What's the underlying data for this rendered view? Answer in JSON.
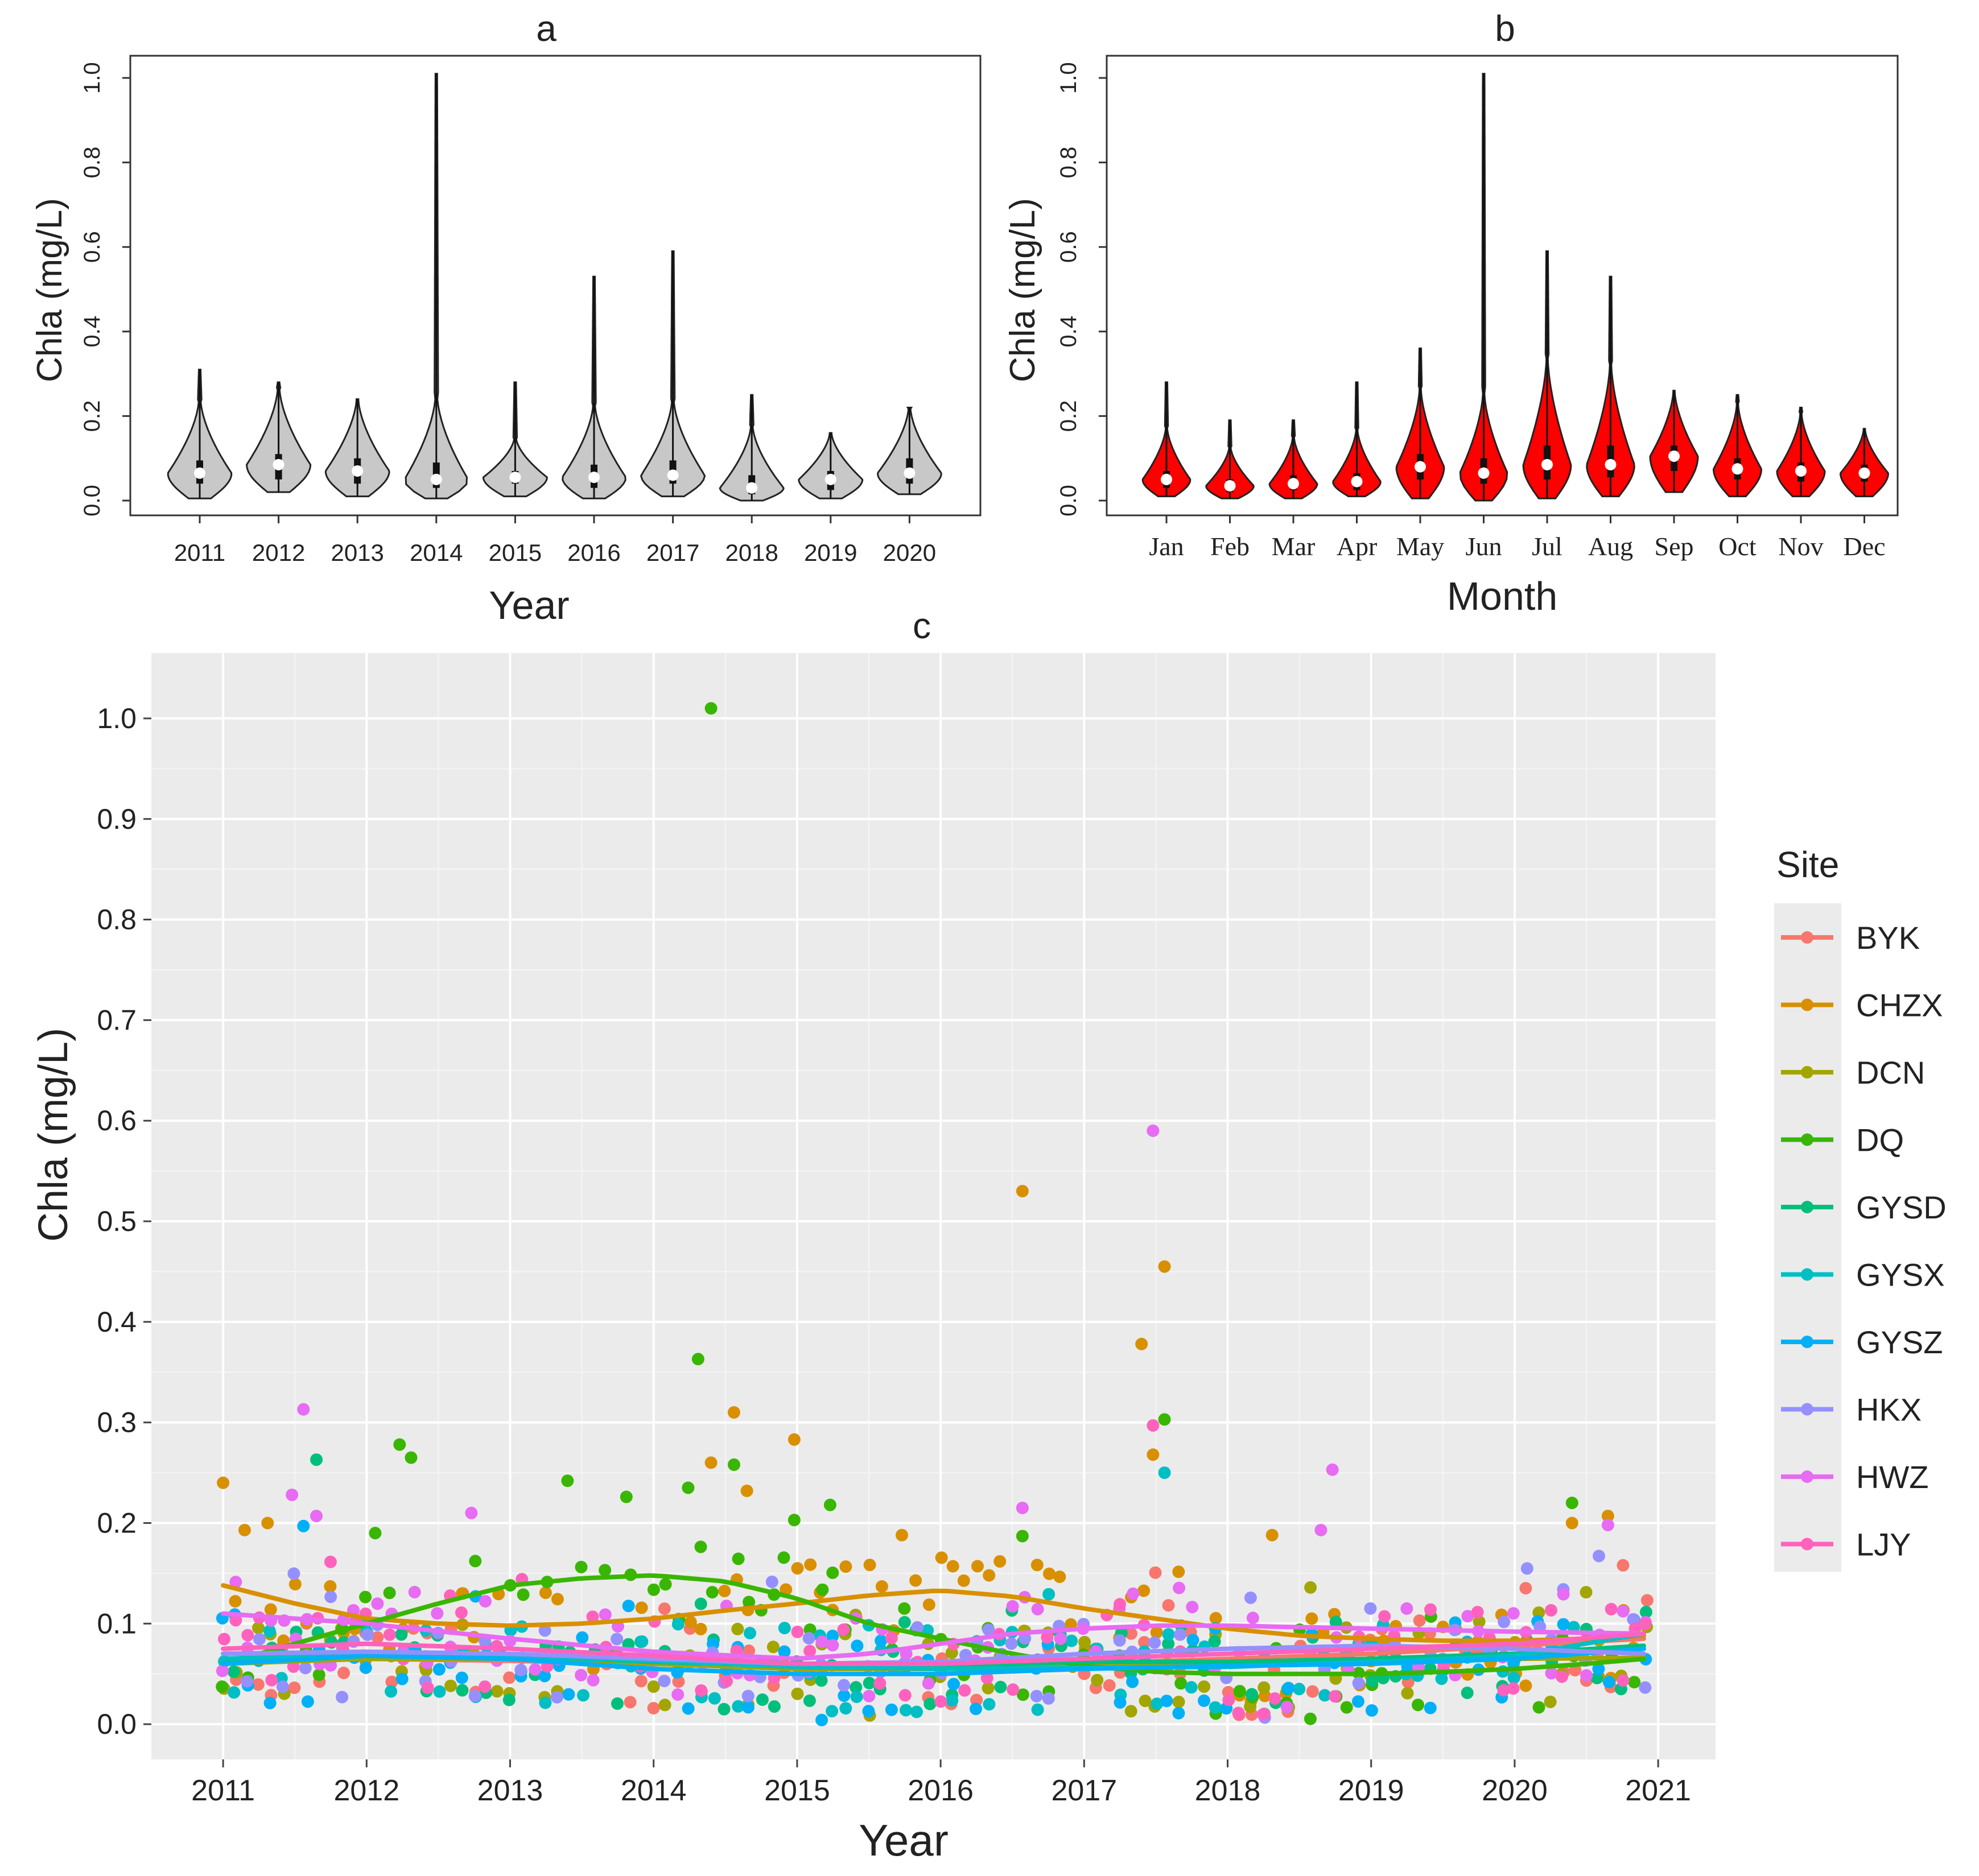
{
  "chart_data": [
    {
      "panel": "a",
      "type": "violin",
      "title": "a",
      "xlabel": "Year",
      "ylabel": "Chla (mg/L)",
      "ylim": [
        0.0,
        1.0
      ],
      "yticks": [
        "0.0",
        "0.2",
        "0.4",
        "0.6",
        "0.8",
        "1.0"
      ],
      "fill_color": "#c8c8c8",
      "categories": [
        "2011",
        "2012",
        "2013",
        "2014",
        "2015",
        "2016",
        "2017",
        "2018",
        "2019",
        "2020"
      ],
      "min": [
        0.005,
        0.02,
        0.01,
        0.005,
        0.01,
        0.005,
        0.01,
        0.0,
        0.005,
        0.015
      ],
      "q1": [
        0.04,
        0.05,
        0.04,
        0.03,
        0.04,
        0.03,
        0.04,
        0.015,
        0.025,
        0.04
      ],
      "median": [
        0.065,
        0.085,
        0.07,
        0.05,
        0.055,
        0.055,
        0.06,
        0.03,
        0.05,
        0.065
      ],
      "q3": [
        0.095,
        0.11,
        0.1,
        0.09,
        0.07,
        0.085,
        0.095,
        0.06,
        0.07,
        0.1
      ],
      "max": [
        0.31,
        0.28,
        0.24,
        1.01,
        0.28,
        0.53,
        0.59,
        0.25,
        0.16,
        0.22
      ]
    },
    {
      "panel": "b",
      "type": "violin",
      "title": "b",
      "xlabel": "Month",
      "ylabel": "Chla (mg/L)",
      "ylim": [
        0.0,
        1.0
      ],
      "yticks": [
        "0.0",
        "0.2",
        "0.4",
        "0.6",
        "0.8",
        "1.0"
      ],
      "fill_color": "#ff0000",
      "categories": [
        "Jan",
        "Feb",
        "Mar",
        "Apr",
        "May",
        "Jun",
        "Jul",
        "Aug",
        "Sep",
        "Oct",
        "Nov",
        "Dec"
      ],
      "min": [
        0.01,
        0.005,
        0.005,
        0.01,
        0.005,
        0.0,
        0.005,
        0.01,
        0.02,
        0.01,
        0.01,
        0.01
      ],
      "q1": [
        0.03,
        0.02,
        0.025,
        0.025,
        0.05,
        0.04,
        0.05,
        0.055,
        0.07,
        0.05,
        0.045,
        0.045
      ],
      "median": [
        0.05,
        0.035,
        0.04,
        0.045,
        0.08,
        0.065,
        0.085,
        0.085,
        0.105,
        0.075,
        0.07,
        0.065
      ],
      "q3": [
        0.07,
        0.05,
        0.06,
        0.065,
        0.11,
        0.1,
        0.13,
        0.13,
        0.13,
        0.1,
        0.09,
        0.085
      ],
      "max": [
        0.28,
        0.19,
        0.19,
        0.28,
        0.36,
        1.01,
        0.59,
        0.53,
        0.26,
        0.25,
        0.22,
        0.17
      ]
    },
    {
      "panel": "c",
      "type": "scatter",
      "title": "c",
      "xlabel": "Year",
      "ylabel": "Chla (mg/L)",
      "xlim": [
        2010.5,
        2021.4
      ],
      "ylim": [
        -0.035,
        1.065
      ],
      "xticks": [
        "2011",
        "2012",
        "2013",
        "2014",
        "2015",
        "2016",
        "2017",
        "2018",
        "2019",
        "2020",
        "2021"
      ],
      "yticks": [
        "0.0",
        "0.1",
        "0.2",
        "0.3",
        "0.4",
        "0.5",
        "0.6",
        "0.7",
        "0.8",
        "0.9",
        "1.0"
      ],
      "legend_title": "Site",
      "legend_position": "right",
      "series": [
        {
          "name": "BYK",
          "color": "#F8766D",
          "trend": [
            [
              2011,
              0.065
            ],
            [
              2012,
              0.065
            ],
            [
              2013,
              0.063
            ],
            [
              2014,
              0.06
            ],
            [
              2015,
              0.055
            ],
            [
              2016,
              0.055
            ],
            [
              2017,
              0.06
            ],
            [
              2018,
              0.065
            ],
            [
              2019,
              0.07
            ],
            [
              2020,
              0.078
            ],
            [
              2020.9,
              0.085
            ]
          ]
        },
        {
          "name": "CHZX",
          "color": "#D89000",
          "trend": [
            [
              2011,
              0.138
            ],
            [
              2011.5,
              0.12
            ],
            [
              2012,
              0.105
            ],
            [
              2012.5,
              0.1
            ],
            [
              2013,
              0.098
            ],
            [
              2013.5,
              0.1
            ],
            [
              2014,
              0.105
            ],
            [
              2014.5,
              0.113
            ],
            [
              2015,
              0.12
            ],
            [
              2015.5,
              0.128
            ],
            [
              2016,
              0.133
            ],
            [
              2016.5,
              0.127
            ],
            [
              2017,
              0.115
            ],
            [
              2017.5,
              0.105
            ],
            [
              2018,
              0.095
            ],
            [
              2018.5,
              0.088
            ],
            [
              2019,
              0.085
            ],
            [
              2019.5,
              0.083
            ],
            [
              2020,
              0.083
            ],
            [
              2020.5,
              0.085
            ],
            [
              2020.9,
              0.088
            ]
          ]
        },
        {
          "name": "DCN",
          "color": "#A3A500",
          "trend": [
            [
              2011,
              0.06
            ],
            [
              2012,
              0.065
            ],
            [
              2013,
              0.065
            ],
            [
              2014,
              0.06
            ],
            [
              2015,
              0.055
            ],
            [
              2016,
              0.055
            ],
            [
              2017,
              0.058
            ],
            [
              2018,
              0.06
            ],
            [
              2019,
              0.062
            ],
            [
              2020,
              0.065
            ],
            [
              2020.9,
              0.066
            ]
          ]
        },
        {
          "name": "DQ",
          "color": "#39B600",
          "trend": [
            [
              2011,
              0.06
            ],
            [
              2011.5,
              0.08
            ],
            [
              2012,
              0.1
            ],
            [
              2012.5,
              0.12
            ],
            [
              2013,
              0.138
            ],
            [
              2013.5,
              0.145
            ],
            [
              2014,
              0.148
            ],
            [
              2014.5,
              0.142
            ],
            [
              2015,
              0.125
            ],
            [
              2015.5,
              0.1
            ],
            [
              2016,
              0.085
            ],
            [
              2016.5,
              0.07
            ],
            [
              2017,
              0.058
            ],
            [
              2017.5,
              0.052
            ],
            [
              2018,
              0.05
            ],
            [
              2018.5,
              0.05
            ],
            [
              2019,
              0.05
            ],
            [
              2019.5,
              0.052
            ],
            [
              2020,
              0.055
            ],
            [
              2020.5,
              0.06
            ],
            [
              2020.9,
              0.065
            ]
          ]
        },
        {
          "name": "GYSD",
          "color": "#00BF7D",
          "trend": [
            [
              2011,
              0.07
            ],
            [
              2012,
              0.072
            ],
            [
              2013,
              0.068
            ],
            [
              2014,
              0.062
            ],
            [
              2015,
              0.058
            ],
            [
              2016,
              0.058
            ],
            [
              2017,
              0.062
            ],
            [
              2018,
              0.062
            ],
            [
              2019,
              0.065
            ],
            [
              2020,
              0.07
            ],
            [
              2020.9,
              0.078
            ]
          ]
        },
        {
          "name": "GYSX",
          "color": "#00BFC4",
          "trend": [
            [
              2011,
              0.065
            ],
            [
              2012,
              0.07
            ],
            [
              2013,
              0.068
            ],
            [
              2014,
              0.063
            ],
            [
              2015,
              0.057
            ],
            [
              2016,
              0.055
            ],
            [
              2017,
              0.056
            ],
            [
              2018,
              0.057
            ],
            [
              2019,
              0.062
            ],
            [
              2020,
              0.068
            ],
            [
              2020.9,
              0.09
            ]
          ]
        },
        {
          "name": "GYSZ",
          "color": "#00B0F6",
          "trend": [
            [
              2011,
              0.06
            ],
            [
              2012,
              0.068
            ],
            [
              2013,
              0.065
            ],
            [
              2014,
              0.055
            ],
            [
              2015,
              0.05
            ],
            [
              2016,
              0.05
            ],
            [
              2017,
              0.055
            ],
            [
              2018,
              0.058
            ],
            [
              2019,
              0.06
            ],
            [
              2020,
              0.065
            ],
            [
              2020.9,
              0.075
            ]
          ]
        },
        {
          "name": "HKX",
          "color": "#9590FF",
          "trend": [
            [
              2011,
              0.07
            ],
            [
              2012,
              0.072
            ],
            [
              2013,
              0.07
            ],
            [
              2014,
              0.065
            ],
            [
              2015,
              0.06
            ],
            [
              2016,
              0.062
            ],
            [
              2017,
              0.07
            ],
            [
              2018,
              0.075
            ],
            [
              2019,
              0.078
            ],
            [
              2020,
              0.075
            ],
            [
              2020.9,
              0.07
            ]
          ]
        },
        {
          "name": "HWZ",
          "color": "#E76BF3",
          "trend": [
            [
              2011,
              0.11
            ],
            [
              2012,
              0.1
            ],
            [
              2013,
              0.085
            ],
            [
              2014,
              0.072
            ],
            [
              2015,
              0.065
            ],
            [
              2015.5,
              0.07
            ],
            [
              2016,
              0.08
            ],
            [
              2016.5,
              0.09
            ],
            [
              2017,
              0.095
            ],
            [
              2017.5,
              0.098
            ],
            [
              2018,
              0.098
            ],
            [
              2019,
              0.095
            ],
            [
              2020,
              0.092
            ],
            [
              2020.9,
              0.09
            ]
          ]
        },
        {
          "name": "LJY",
          "color": "#FF62BC",
          "trend": [
            [
              2011,
              0.075
            ],
            [
              2012,
              0.08
            ],
            [
              2013,
              0.075
            ],
            [
              2014,
              0.068
            ],
            [
              2015,
              0.06
            ],
            [
              2016,
              0.06
            ],
            [
              2017,
              0.065
            ],
            [
              2018,
              0.07
            ],
            [
              2019,
              0.075
            ],
            [
              2020,
              0.08
            ],
            [
              2020.9,
              0.09
            ]
          ]
        }
      ],
      "highlight_points": [
        {
          "site": "DQ",
          "x": 2014.4,
          "y": 1.01
        },
        {
          "site": "HWZ",
          "x": 2017.48,
          "y": 0.59
        },
        {
          "site": "CHZX",
          "x": 2016.57,
          "y": 0.53
        },
        {
          "site": "CHZX",
          "x": 2017.56,
          "y": 0.455
        },
        {
          "site": "CHZX",
          "x": 2017.4,
          "y": 0.378
        },
        {
          "site": "DQ",
          "x": 2014.31,
          "y": 0.363
        },
        {
          "site": "HWZ",
          "x": 2011.56,
          "y": 0.313
        },
        {
          "site": "CHZX",
          "x": 2014.56,
          "y": 0.31
        },
        {
          "site": "DQ",
          "x": 2017.56,
          "y": 0.303
        },
        {
          "site": "LJY",
          "x": 2017.48,
          "y": 0.297
        },
        {
          "site": "CHZX",
          "x": 2014.98,
          "y": 0.283
        },
        {
          "site": "DQ",
          "x": 2012.23,
          "y": 0.278
        },
        {
          "site": "CHZX",
          "x": 2017.48,
          "y": 0.268
        },
        {
          "site": "DQ",
          "x": 2012.31,
          "y": 0.265
        },
        {
          "site": "GYSD",
          "x": 2011.65,
          "y": 0.263
        },
        {
          "site": "CHZX",
          "x": 2014.4,
          "y": 0.26
        },
        {
          "site": "DQ",
          "x": 2014.56,
          "y": 0.258
        },
        {
          "site": "HWZ",
          "x": 2018.73,
          "y": 0.253
        },
        {
          "site": "GYSX",
          "x": 2017.56,
          "y": 0.25
        },
        {
          "site": "CHZX",
          "x": 2011.0,
          "y": 0.24
        },
        {
          "site": "DQ",
          "x": 2013.4,
          "y": 0.242
        },
        {
          "site": "CHZX",
          "x": 2014.65,
          "y": 0.232
        },
        {
          "site": "HWZ",
          "x": 2011.48,
          "y": 0.228
        },
        {
          "site": "DQ",
          "x": 2013.81,
          "y": 0.226
        },
        {
          "site": "DQ",
          "x": 2020.4,
          "y": 0.22
        },
        {
          "site": "DQ",
          "x": 2015.23,
          "y": 0.218
        },
        {
          "site": "HWZ",
          "x": 2016.57,
          "y": 0.215
        },
        {
          "site": "CHZX",
          "x": 2020.65,
          "y": 0.207
        },
        {
          "site": "HWZ",
          "x": 2011.65,
          "y": 0.207
        },
        {
          "site": "HWZ",
          "x": 2012.73,
          "y": 0.21
        },
        {
          "site": "DQ",
          "x": 2014.98,
          "y": 0.203
        },
        {
          "site": "CHZX",
          "x": 2011.31,
          "y": 0.2
        },
        {
          "site": "CHZX",
          "x": 2020.4,
          "y": 0.2
        },
        {
          "site": "HWZ",
          "x": 2020.65,
          "y": 0.198
        },
        {
          "site": "GYSZ",
          "x": 2011.56,
          "y": 0.197
        },
        {
          "site": "CHZX",
          "x": 2011.15,
          "y": 0.193
        },
        {
          "site": "HWZ",
          "x": 2018.65,
          "y": 0.193
        },
        {
          "site": "DQ",
          "x": 2012.06,
          "y": 0.19
        },
        {
          "site": "CHZX",
          "x": 2015.73,
          "y": 0.188
        },
        {
          "site": "CHZX",
          "x": 2018.31,
          "y": 0.188
        },
        {
          "site": "DQ",
          "x": 2016.57,
          "y": 0.187
        }
      ],
      "background_samples": [
        0.02,
        0.03,
        0.035,
        0.04,
        0.045,
        0.05,
        0.055,
        0.06,
        0.065,
        0.07,
        0.075,
        0.08,
        0.085,
        0.09,
        0.095,
        0.1,
        0.105,
        0.11,
        0.12,
        0.13
      ]
    }
  ]
}
